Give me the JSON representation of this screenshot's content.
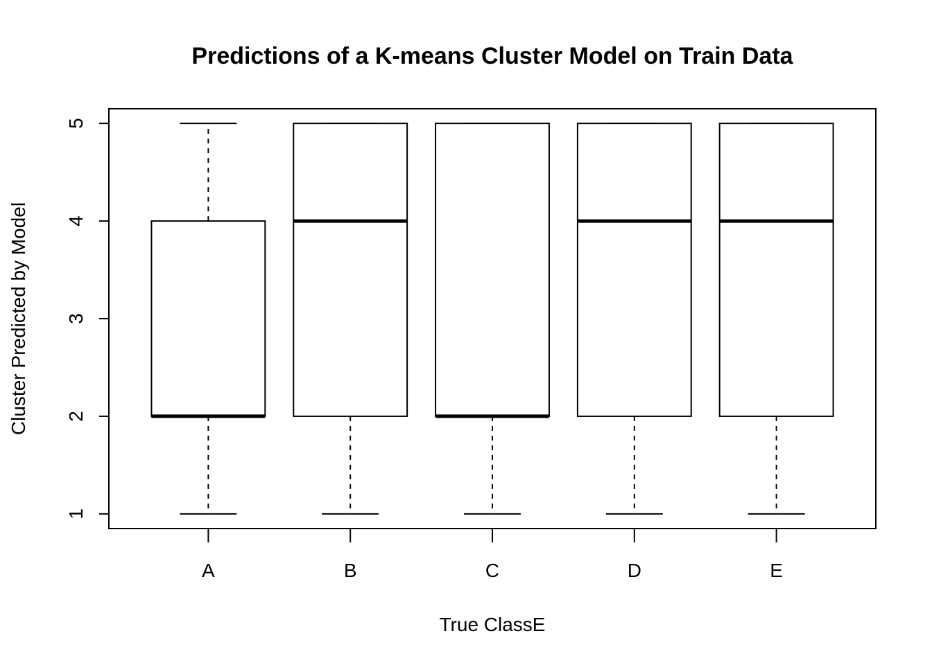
{
  "chart_data": {
    "type": "boxplot",
    "title": "Predictions of a K-means Cluster Model on Train Data",
    "xlabel": "True ClassE",
    "ylabel": "Cluster Predicted by Model",
    "categories": [
      "A",
      "B",
      "C",
      "D",
      "E"
    ],
    "boxes": [
      {
        "category": "A",
        "min": 1,
        "q1": 2,
        "median": 2,
        "q3": 4,
        "max": 5
      },
      {
        "category": "B",
        "min": 1,
        "q1": 2,
        "median": 4,
        "q3": 5,
        "max": 5
      },
      {
        "category": "C",
        "min": 1,
        "q1": 2,
        "median": 2,
        "q3": 5,
        "max": 5
      },
      {
        "category": "D",
        "min": 1,
        "q1": 2,
        "median": 4,
        "q3": 5,
        "max": 5
      },
      {
        "category": "E",
        "min": 1,
        "q1": 2,
        "median": 4,
        "q3": 5,
        "max": 5
      }
    ],
    "yticks": [
      1,
      2,
      3,
      4,
      5
    ],
    "ylim": [
      0.85,
      5.15
    ],
    "grid": false,
    "legend": "none"
  }
}
